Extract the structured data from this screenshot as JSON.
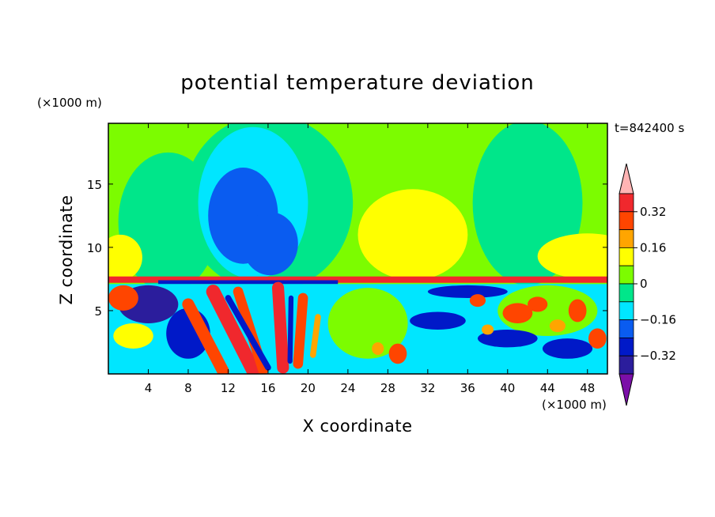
{
  "chart_data": {
    "type": "heatmap",
    "title": "potential temperature deviation",
    "xlabel": "X coordinate",
    "ylabel": "Z coordinate",
    "x_unit": "(×1000 m)",
    "y_unit": "(×1000 m)",
    "time_label": "t=842400 s",
    "xlim": [
      0,
      50
    ],
    "ylim": [
      0,
      19.8
    ],
    "x_ticks": [
      4,
      8,
      12,
      16,
      20,
      24,
      28,
      32,
      36,
      40,
      44,
      48
    ],
    "y_ticks": [
      5,
      10,
      15
    ],
    "colorbar": {
      "levels": [
        -0.4,
        -0.32,
        -0.24,
        -0.16,
        -0.08,
        0,
        0.08,
        0.16,
        0.24,
        0.32,
        0.4
      ],
      "tick_labels": [
        "0.32",
        "0.16",
        "0",
        "-0.16",
        "-0.32"
      ],
      "tick_values": [
        0.32,
        0.16,
        0,
        -0.16,
        -0.32
      ],
      "colors": [
        "#7b0fa8",
        "#2b1d9c",
        "#0019c8",
        "#0a5cf0",
        "#00e6ff",
        "#00e68a",
        "#7cfc00",
        "#ffff00",
        "#ffa500",
        "#ff4500",
        "#f0282d",
        "#ffb4b4"
      ]
    },
    "regions": [
      {
        "shape": "rect",
        "x": [
          0,
          50
        ],
        "z": [
          0,
          19.8
        ],
        "value": 0.04
      },
      {
        "shape": "ellipse",
        "cx": 6,
        "cz": 12,
        "rx": 5,
        "rz": 5.5,
        "value": -0.02
      },
      {
        "shape": "ellipse",
        "cx": 16,
        "cz": 13.5,
        "rx": 8.5,
        "rz": 7,
        "value": -0.02
      },
      {
        "shape": "ellipse",
        "cx": 42,
        "cz": 13.5,
        "rx": 5.5,
        "rz": 6.5,
        "value": -0.02
      },
      {
        "shape": "ellipse",
        "cx": 14.5,
        "cz": 13.5,
        "rx": 5.5,
        "rz": 6,
        "value": -0.12
      },
      {
        "shape": "ellipse",
        "cx": 13.5,
        "cz": 12.5,
        "rx": 3.5,
        "rz": 3.8,
        "value": -0.2
      },
      {
        "shape": "ellipse",
        "cx": 16.2,
        "cz": 10.3,
        "rx": 2.8,
        "rz": 2.5,
        "value": -0.2
      },
      {
        "shape": "ellipse",
        "cx": 30.5,
        "cz": 11,
        "rx": 5.5,
        "rz": 3.6,
        "value": 0.12
      },
      {
        "shape": "ellipse",
        "cx": 48,
        "cz": 9.3,
        "rx": 5,
        "rz": 1.8,
        "value": 0.12
      },
      {
        "shape": "ellipse",
        "cx": 1.2,
        "cz": 9.2,
        "rx": 2.2,
        "rz": 1.8,
        "value": 0.12
      },
      {
        "shape": "rect",
        "x": [
          0,
          50
        ],
        "z": [
          7.2,
          7.7
        ],
        "value": 0.34
      },
      {
        "shape": "rect",
        "x": [
          5,
          23
        ],
        "z": [
          7.1,
          7.4
        ],
        "value": -0.3
      },
      {
        "shape": "rect",
        "x": [
          0,
          50
        ],
        "z": [
          0,
          7.1
        ],
        "value": -0.1
      },
      {
        "shape": "ellipse",
        "cx": 26,
        "cz": 4,
        "rx": 4,
        "rz": 2.8,
        "value": 0.04
      },
      {
        "shape": "ellipse",
        "cx": 44,
        "cz": 5,
        "rx": 5,
        "rz": 2,
        "value": 0.04
      },
      {
        "shape": "ellipse",
        "cx": 4,
        "cz": 5.5,
        "rx": 3,
        "rz": 1.5,
        "value": -0.36
      },
      {
        "shape": "ellipse",
        "cx": 8,
        "cz": 3.2,
        "rx": 2.2,
        "rz": 2,
        "value": -0.3
      },
      {
        "shape": "ellipse",
        "cx": 33,
        "cz": 4.2,
        "rx": 2.8,
        "rz": 0.7,
        "value": -0.3
      },
      {
        "shape": "ellipse",
        "cx": 40,
        "cz": 2.8,
        "rx": 3,
        "rz": 0.7,
        "value": -0.3
      },
      {
        "shape": "ellipse",
        "cx": 46,
        "cz": 2,
        "rx": 2.5,
        "rz": 0.8,
        "value": -0.3
      },
      {
        "shape": "ellipse",
        "cx": 36,
        "cz": 6.5,
        "rx": 4,
        "rz": 0.5,
        "value": -0.3
      },
      {
        "shape": "ellipse",
        "cx": 1.5,
        "cz": 6,
        "rx": 1.5,
        "rz": 1,
        "value": 0.3
      },
      {
        "shape": "ellipse",
        "cx": 2.5,
        "cz": 3,
        "rx": 2,
        "rz": 1,
        "value": 0.12
      },
      {
        "shape": "band",
        "x0": 8,
        "x1": 11.5,
        "z0": 5.5,
        "z1": 0.2,
        "w": 1.2,
        "value": 0.3
      },
      {
        "shape": "band",
        "x0": 10.5,
        "x1": 14.5,
        "z0": 6.5,
        "z1": 0.3,
        "w": 1.4,
        "value": 0.38
      },
      {
        "shape": "band",
        "x0": 13,
        "x1": 15.5,
        "z0": 6.5,
        "z1": 0.3,
        "w": 1.0,
        "value": 0.3
      },
      {
        "shape": "band",
        "x0": 17,
        "x1": 17.5,
        "z0": 6.8,
        "z1": 0.5,
        "w": 1.2,
        "value": 0.38
      },
      {
        "shape": "band",
        "x0": 19.5,
        "x1": 19,
        "z0": 6,
        "z1": 0.8,
        "w": 1.0,
        "value": 0.3
      },
      {
        "shape": "band",
        "x0": 21,
        "x1": 20.5,
        "z0": 4.5,
        "z1": 1.5,
        "w": 0.6,
        "value": 0.2
      },
      {
        "shape": "band",
        "x0": 12,
        "x1": 16,
        "z0": 6,
        "z1": 0.5,
        "w": 0.6,
        "value": -0.3
      },
      {
        "shape": "band",
        "x0": 18.3,
        "x1": 18.2,
        "z0": 6,
        "z1": 1,
        "w": 0.5,
        "value": -0.3
      },
      {
        "shape": "ellipse",
        "cx": 29,
        "cz": 1.6,
        "rx": 0.9,
        "rz": 0.8,
        "value": 0.3
      },
      {
        "shape": "ellipse",
        "cx": 27,
        "cz": 2,
        "rx": 0.6,
        "rz": 0.5,
        "value": 0.2
      },
      {
        "shape": "ellipse",
        "cx": 37,
        "cz": 5.8,
        "rx": 0.8,
        "rz": 0.5,
        "value": 0.3
      },
      {
        "shape": "ellipse",
        "cx": 41,
        "cz": 4.8,
        "rx": 1.5,
        "rz": 0.8,
        "value": 0.3
      },
      {
        "shape": "ellipse",
        "cx": 43,
        "cz": 5.5,
        "rx": 1,
        "rz": 0.6,
        "value": 0.3
      },
      {
        "shape": "ellipse",
        "cx": 47,
        "cz": 5,
        "rx": 0.9,
        "rz": 0.9,
        "value": 0.3
      },
      {
        "shape": "ellipse",
        "cx": 49,
        "cz": 2.8,
        "rx": 0.9,
        "rz": 0.8,
        "value": 0.3
      },
      {
        "shape": "ellipse",
        "cx": 38,
        "cz": 3.5,
        "rx": 0.6,
        "rz": 0.4,
        "value": 0.2
      },
      {
        "shape": "ellipse",
        "cx": 45,
        "cz": 3.8,
        "rx": 0.8,
        "rz": 0.5,
        "value": 0.2
      }
    ]
  }
}
